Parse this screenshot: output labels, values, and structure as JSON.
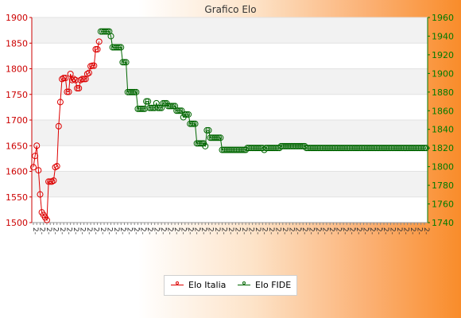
{
  "chart_data": {
    "type": "line",
    "title": "Grafico Elo",
    "left_axis": {
      "ylim": [
        1500,
        1900
      ],
      "ticks": [
        1500,
        1550,
        1600,
        1650,
        1700,
        1750,
        1800,
        1850,
        1900
      ],
      "color": "#cc0000"
    },
    "right_axis": {
      "ylim": [
        1740,
        1960
      ],
      "ticks": [
        1740,
        1760,
        1780,
        1800,
        1820,
        1840,
        1860,
        1880,
        1900,
        1920,
        1940,
        1960
      ],
      "color": "#007a00"
    },
    "grid": true,
    "legend_position": "bottom",
    "series": [
      {
        "name": "Elo Italia",
        "axis": "left",
        "color": "#dd0000",
        "values": [
          1608,
          1630,
          1650,
          1602,
          1555,
          1520,
          1515,
          1510,
          1505,
          1580,
          1580,
          1580,
          1582,
          1608,
          1610,
          1688,
          1735,
          1780,
          1782,
          1782,
          1755,
          1755,
          1790,
          1778,
          1780,
          1778,
          1762,
          1762,
          1778,
          1780,
          1780,
          1780,
          1790,
          1792,
          1805,
          1806,
          1806,
          1838,
          1838,
          1853
        ]
      },
      {
        "name": "Elo FIDE",
        "axis": "right",
        "color": "#006600",
        "values": [
          1945,
          1945,
          1945,
          1945,
          1945,
          1945,
          1940,
          1928,
          1928,
          1928,
          1928,
          1928,
          1928,
          1912,
          1912,
          1912,
          1880,
          1880,
          1880,
          1880,
          1880,
          1880,
          1862,
          1862,
          1862,
          1862,
          1862,
          1870,
          1870,
          1863,
          1863,
          1863,
          1863,
          1868,
          1863,
          1863,
          1863,
          1868,
          1868,
          1868,
          1865,
          1865,
          1865,
          1865,
          1865,
          1860,
          1860,
          1860,
          1860,
          1853,
          1856,
          1856,
          1856,
          1846,
          1846,
          1846,
          1846,
          1825,
          1825,
          1825,
          1825,
          1825,
          1822,
          1839,
          1839,
          1831,
          1831,
          1831,
          1831,
          1831,
          1831,
          1831,
          1818,
          1818,
          1818,
          1818,
          1818,
          1818,
          1818,
          1818,
          1818,
          1818,
          1818,
          1818,
          1818,
          1818,
          1818,
          1820,
          1820,
          1820,
          1820,
          1820,
          1820,
          1820,
          1820,
          1820,
          1820,
          1818,
          1820,
          1820,
          1820,
          1820,
          1820,
          1820,
          1820,
          1820,
          1820,
          1822,
          1822,
          1822,
          1822,
          1822,
          1822,
          1822,
          1822,
          1822,
          1822,
          1822,
          1822,
          1822,
          1822,
          1822,
          1820,
          1820,
          1820,
          1820,
          1820,
          1820,
          1820,
          1820,
          1820,
          1820,
          1820,
          1820,
          1820,
          1820,
          1820,
          1820,
          1820,
          1820,
          1820,
          1820,
          1820,
          1820,
          1820,
          1820,
          1820,
          1820,
          1820,
          1820,
          1820,
          1820,
          1820,
          1820,
          1820,
          1820,
          1820,
          1820,
          1820,
          1820,
          1820,
          1820,
          1820,
          1820,
          1820,
          1820,
          1820,
          1820,
          1820,
          1820,
          1820,
          1820,
          1820,
          1820,
          1820,
          1820,
          1820,
          1820,
          1820,
          1820,
          1820,
          1820,
          1820,
          1820,
          1820,
          1820,
          1820,
          1820,
          1820,
          1820,
          1820,
          1820,
          1820,
          1820
        ]
      }
    ]
  },
  "legend": {
    "items": [
      {
        "label": "Elo Italia",
        "color": "#dd0000"
      },
      {
        "label": "Elo FIDE",
        "color": "#006600"
      }
    ]
  }
}
